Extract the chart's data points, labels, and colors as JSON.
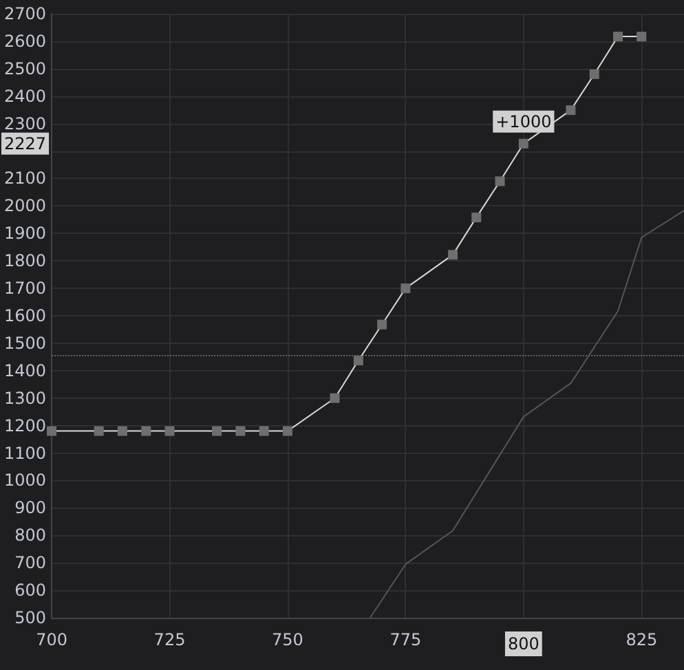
{
  "chart_data": {
    "type": "line",
    "xlim": [
      700,
      834
    ],
    "xticks": [
      700,
      725,
      750,
      775,
      800,
      825
    ],
    "ylim": [
      500,
      2700
    ],
    "yticks": [
      500,
      600,
      700,
      800,
      900,
      1000,
      1100,
      1200,
      1300,
      1400,
      1500,
      1600,
      1700,
      1800,
      1900,
      2000,
      2100,
      {
        "value": 2200,
        "label": null
      },
      2300,
      2400,
      2500,
      2600,
      2700
    ],
    "grid": true,
    "series": [
      {
        "color": "#d8d8d8",
        "marker": "square",
        "x": [
          700,
          710,
          715,
          720,
          725,
          735,
          740,
          745,
          750,
          760,
          765,
          770,
          775,
          785,
          790,
          795,
          800,
          810,
          815,
          820,
          825
        ],
        "values": [
          1180,
          1180,
          1180,
          1180,
          1180,
          1180,
          1180,
          1180,
          1180,
          1300,
          1437,
          1568,
          1700,
          1822,
          1958,
          2090,
          2227,
          2349,
          2480,
          2617,
          2617
        ]
      },
      {
        "color": "#555555",
        "marker": "none",
        "x": [
          767.5,
          775,
          785,
          800,
          810,
          820,
          825,
          834
        ],
        "values": [
          500,
          695,
          817,
          1232,
          1354,
          1617,
          1885,
          1983
        ]
      }
    ],
    "ref_lines": [
      {
        "axis": "y",
        "value": 1456,
        "color": "#666666",
        "line_style": "dotted"
      }
    ],
    "annotations": [
      {
        "text": "+1000",
        "x": 800,
        "y": 2227
      },
      {
        "text": "2227",
        "y": 2227
      }
    ]
  }
}
